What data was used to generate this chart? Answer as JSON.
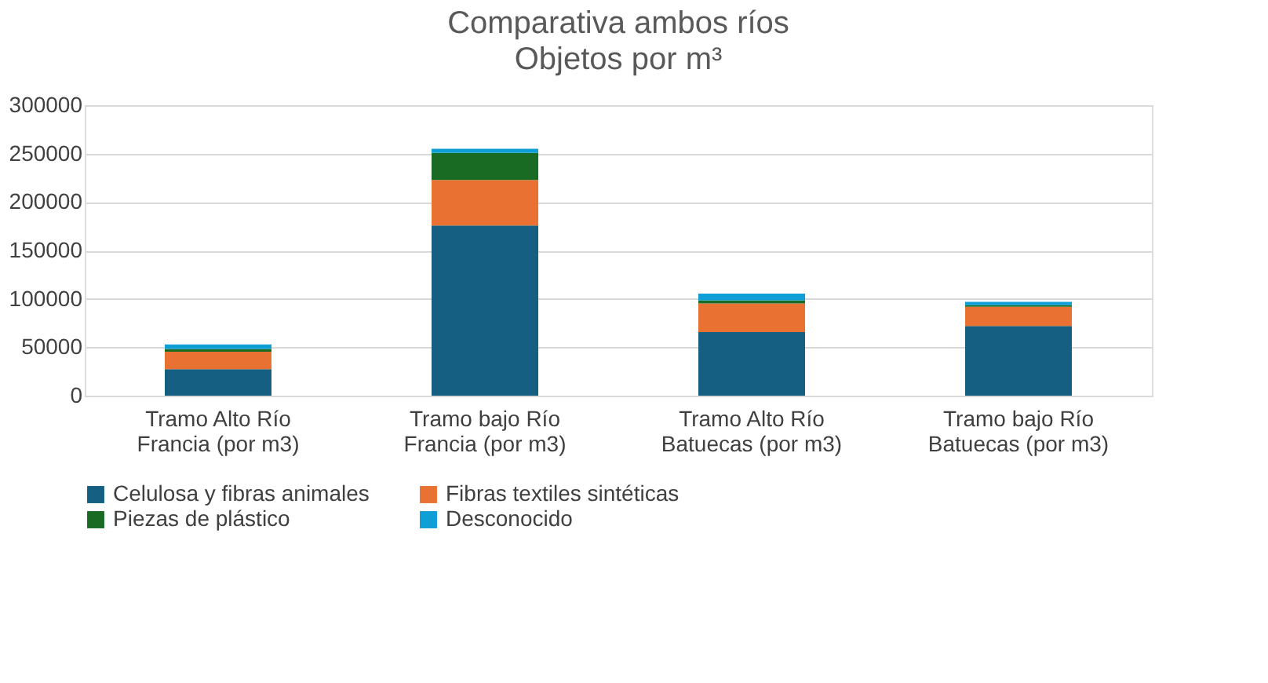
{
  "chart_data": {
    "type": "bar",
    "title": "Comparativa ambos ríos",
    "subtitle": "Objetos por m³",
    "categories": [
      "Tramo Alto Río Francia (por m3)",
      "Tramo bajo Río Francia (por m3)",
      "Tramo Alto Río Batuecas (por m3)",
      "Tramo bajo Río Batuecas (por m3)"
    ],
    "stacked": true,
    "series": [
      {
        "name": "Celulosa y fibras animales",
        "color": "#156082",
        "values": [
          27300,
          175700,
          65600,
          72000
        ]
      },
      {
        "name": "Fibras textiles sintéticas",
        "color": "#e97132",
        "values": [
          18200,
          47100,
          29600,
          19900
        ]
      },
      {
        "name": "Piezas de plástico",
        "color": "#196b24",
        "values": [
          2700,
          27900,
          3200,
          1600
        ]
      },
      {
        "name": "Desconocido",
        "color": "#0f9ed5",
        "values": [
          4800,
          4300,
          7000,
          3300
        ]
      }
    ],
    "ylim": [
      0,
      300000
    ],
    "yticks": [
      0,
      50000,
      100000,
      150000,
      200000,
      250000,
      300000
    ],
    "grid": "y",
    "legend": "bottom"
  }
}
